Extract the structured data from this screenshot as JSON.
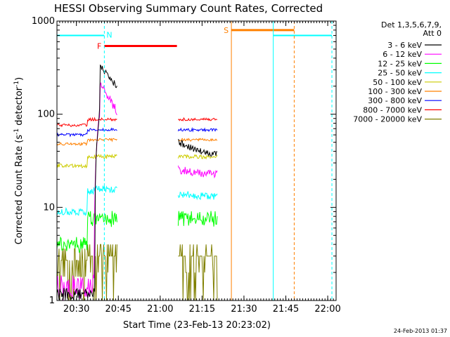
{
  "chart_data": {
    "type": "line",
    "title": "HESSI Observing Summary Count Rates, Corrected",
    "xlabel": "Start Time (23-Feb-13 20:23:02)",
    "ylabel": "Corrected Count Rate (s⁻¹ detector⁻¹)",
    "ylabel_main": "Corrected Count Rate (s",
    "ylabel_sup1": "-1",
    "ylabel_mid": " detector",
    "ylabel_sup2": "-1",
    "ylabel_end": ")",
    "y_scale": "log",
    "ylim": [
      1,
      1000
    ],
    "xlim": [
      "20:23:02",
      "22:03:00"
    ],
    "x_ticks": [
      "20:30",
      "20:45",
      "21:00",
      "21:15",
      "21:30",
      "21:45",
      "22:00"
    ],
    "y_ticks": [
      "1",
      "10",
      "100",
      "1000"
    ],
    "legend_header": [
      "Det 1,3,5,6,7,9,",
      "Att 0"
    ],
    "legend_placement": "top-right",
    "footer_date": "24-Feb-2013 01:37",
    "flags": [
      {
        "label": "N",
        "color": "#00ffff",
        "x_start": "20:23:02",
        "x_end": "20:40:00"
      },
      {
        "label": "F",
        "color": "#ff0000",
        "x_start": "20:40:00",
        "x_end": "21:06:00"
      },
      {
        "label": "S",
        "color": "#ff8000",
        "x_start": "21:25:30",
        "x_end": "21:48:00"
      }
    ],
    "series": [
      {
        "name": "3 - 6 keV",
        "color": "#000000"
      },
      {
        "name": "6 - 12 keV",
        "color": "#ff00ff"
      },
      {
        "name": "12 - 25 keV",
        "color": "#00ff00"
      },
      {
        "name": "25 - 50 keV",
        "color": "#00ffff"
      },
      {
        "name": "50 - 100 keV",
        "color": "#cccc00"
      },
      {
        "name": "100 - 300 keV",
        "color": "#ff8000"
      },
      {
        "name": "300 - 800 keV",
        "color": "#0000ff"
      },
      {
        "name": "800 - 7000 keV",
        "color": "#ff0000"
      },
      {
        "name": "7000 - 20000 keV",
        "color": "#808000"
      }
    ]
  }
}
